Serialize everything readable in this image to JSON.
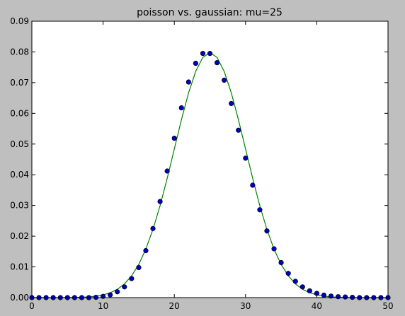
{
  "chart_data": {
    "type": "scatter",
    "title": "poisson vs. gaussian: mu=25",
    "xlabel": "",
    "ylabel": "",
    "xlim": [
      0,
      50
    ],
    "ylim": [
      0,
      0.09
    ],
    "xticks": [
      0,
      10,
      20,
      30,
      40,
      50
    ],
    "yticks": [
      0.0,
      0.01,
      0.02,
      0.03,
      0.04,
      0.05,
      0.06,
      0.07,
      0.08,
      0.09
    ],
    "xtick_labels": [
      "0",
      "10",
      "20",
      "30",
      "40",
      "50"
    ],
    "ytick_labels": [
      "0.00",
      "0.01",
      "0.02",
      "0.03",
      "0.04",
      "0.05",
      "0.06",
      "0.07",
      "0.08",
      "0.09"
    ],
    "grid": false,
    "series": [
      {
        "kind": "points",
        "color": "#0000bf",
        "x": [
          0,
          1,
          2,
          3,
          4,
          5,
          6,
          7,
          8,
          9,
          10,
          11,
          12,
          13,
          14,
          15,
          16,
          17,
          18,
          19,
          20,
          21,
          22,
          23,
          24,
          25,
          26,
          27,
          28,
          29,
          30,
          31,
          32,
          33,
          34,
          35,
          36,
          37,
          38,
          39,
          40,
          41,
          42,
          43,
          44,
          45,
          46,
          47,
          48,
          49,
          50
        ],
        "y": [
          0,
          0,
          0,
          0,
          0,
          0,
          0,
          0,
          0,
          0.0001,
          0.0004,
          0.0009,
          0.0019,
          0.0035,
          0.0062,
          0.0098,
          0.0153,
          0.0225,
          0.0313,
          0.0412,
          0.0519,
          0.0618,
          0.0702,
          0.0763,
          0.0795,
          0.0795,
          0.0765,
          0.0708,
          0.0632,
          0.0545,
          0.0454,
          0.0366,
          0.0286,
          0.0217,
          0.0159,
          0.0114,
          0.0079,
          0.0053,
          0.0035,
          0.0022,
          0.0014,
          0.0008,
          0.0005,
          0.0003,
          0.0002,
          0.0001,
          0,
          0,
          0,
          0,
          0
        ]
      },
      {
        "kind": "line",
        "color": "#008000",
        "mu": 25,
        "sigma": 5
      }
    ]
  }
}
